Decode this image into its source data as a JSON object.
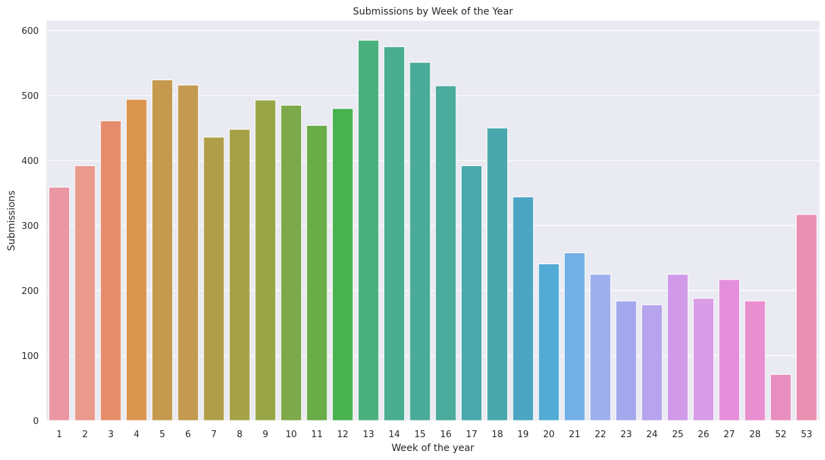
{
  "chart_data": {
    "type": "bar",
    "title": "Submissions by Week of the Year",
    "xlabel": "Week of the year",
    "ylabel": "Submissions",
    "ylim": [
      0,
      615
    ],
    "yticks": [
      0,
      100,
      200,
      300,
      400,
      500,
      600
    ],
    "categories": [
      "1",
      "2",
      "3",
      "4",
      "5",
      "6",
      "7",
      "8",
      "9",
      "10",
      "11",
      "12",
      "13",
      "14",
      "15",
      "16",
      "17",
      "18",
      "19",
      "20",
      "21",
      "22",
      "23",
      "24",
      "25",
      "26",
      "27",
      "28",
      "52",
      "53"
    ],
    "values": [
      359,
      392,
      461,
      494,
      524,
      516,
      436,
      448,
      493,
      485,
      454,
      480,
      585,
      575,
      551,
      515,
      392,
      450,
      344,
      241,
      258,
      225,
      184,
      178,
      225,
      188,
      217,
      184,
      71,
      317
    ],
    "colors": [
      "#ea96a3",
      "#e99a8d",
      "#e58d6b",
      "#da954f",
      "#c59a4f",
      "#c39a4f",
      "#b09f48",
      "#a5a147",
      "#98a546",
      "#7ea94b",
      "#6aac48",
      "#48b24f",
      "#4ab07e",
      "#4aad90",
      "#4bab9a",
      "#4bab9d",
      "#49a9ab",
      "#4aa8ad",
      "#4ba5c3",
      "#52abd4",
      "#71afe5",
      "#9dafed",
      "#a4a9ed",
      "#b6a4ed",
      "#d19ae8",
      "#d99ce6",
      "#e58fdc",
      "#e98fcf",
      "#e98fc0",
      "#e991b2"
    ],
    "background": "#eaeaf2",
    "grid": true,
    "legend": "none"
  }
}
